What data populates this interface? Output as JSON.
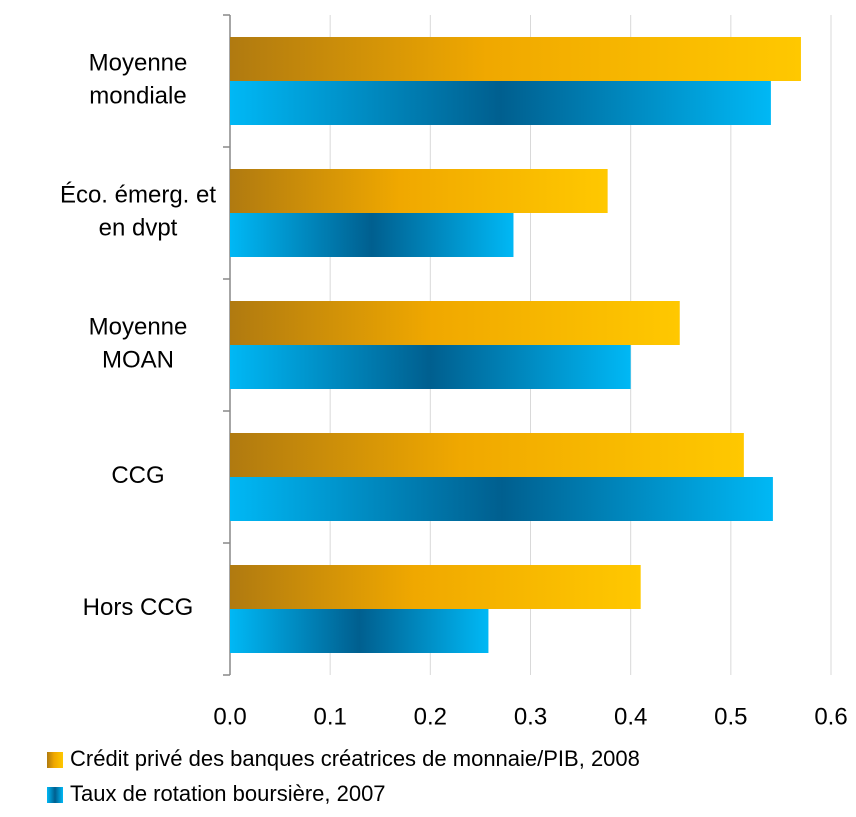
{
  "chart_data": {
    "type": "hbar",
    "categories": [
      "Moyenne\nmondiale",
      "Éco. émerg. et\nen dvpt",
      "Moyenne\nMOAN",
      "CCG",
      "Hors CCG"
    ],
    "series": [
      {
        "name": "Crédit privé des banques créatrices de monnaie/PIB, 2008",
        "color": "#ffc000",
        "values": [
          0.57,
          0.377,
          0.449,
          0.513,
          0.41
        ]
      },
      {
        "name": "Taux de rotation boursière, 2007",
        "color": "#00b0f0",
        "values": [
          0.54,
          0.283,
          0.4,
          0.542,
          0.258
        ]
      }
    ],
    "xlim": [
      0,
      0.6
    ],
    "xticks": [
      {
        "value": 0,
        "label": "0.0"
      },
      0.1,
      0.2,
      0.3,
      0.4,
      0.5,
      0.6
    ],
    "grid": true,
    "legend": "bottom"
  }
}
